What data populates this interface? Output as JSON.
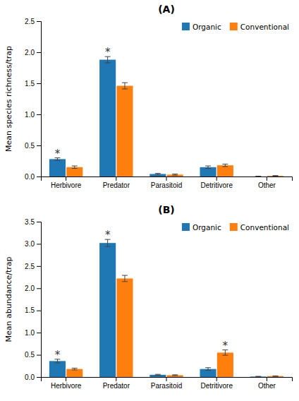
{
  "chart_data": [
    {
      "type": "bar",
      "title": "(A)",
      "y_label": "Mean species richness/trap",
      "categories": [
        "Herbivore",
        "Predator",
        "Parasitoid",
        "Detritivore",
        "Other"
      ],
      "series": [
        {
          "name": "Organic",
          "values": [
            0.28,
            1.88,
            0.04,
            0.15,
            0.0
          ],
          "errors": [
            0.02,
            0.05,
            0.01,
            0.02,
            0.005
          ]
        },
        {
          "name": "Conventional",
          "values": [
            0.15,
            1.46,
            0.03,
            0.18,
            0.01
          ],
          "errors": [
            0.02,
            0.05,
            0.01,
            0.02,
            0.005
          ]
        }
      ],
      "annotations": [
        {
          "text": "*",
          "series": "Organic",
          "category": "Herbivore"
        },
        {
          "text": "*",
          "series": "Organic",
          "category": "Predator"
        }
      ],
      "ylim": [
        0,
        2.5
      ],
      "yticks": [
        {
          "value": 0,
          "label": "0.0"
        },
        0.5,
        {
          "value": 1.0,
          "label": "1.0"
        },
        1.5,
        {
          "value": 2.0,
          "label": "2.0"
        },
        2.5
      ],
      "grid": false,
      "legend": "upper right"
    },
    {
      "type": "bar",
      "title": "(B)",
      "y_label": "Mean abundance/trap",
      "categories": [
        "Herbivore",
        "Predator",
        "Parasitoid",
        "Detritivore",
        "Other"
      ],
      "series": [
        {
          "name": "Organic",
          "values": [
            0.36,
            3.02,
            0.05,
            0.18,
            0.01
          ],
          "errors": [
            0.04,
            0.08,
            0.01,
            0.03,
            0.005
          ]
        },
        {
          "name": "Conventional",
          "values": [
            0.18,
            2.22,
            0.04,
            0.55,
            0.02
          ],
          "errors": [
            0.02,
            0.07,
            0.01,
            0.06,
            0.005
          ]
        }
      ],
      "annotations": [
        {
          "text": "*",
          "series": "Organic",
          "category": "Herbivore"
        },
        {
          "text": "*",
          "series": "Organic",
          "category": "Predator"
        },
        {
          "text": "*",
          "series": "Conventional",
          "category": "Detritivore"
        }
      ],
      "ylim": [
        0,
        3.5
      ],
      "yticks": [
        {
          "value": 0,
          "label": "0.0"
        },
        0.5,
        {
          "value": 1.0,
          "label": "1.0"
        },
        1.5,
        {
          "value": 2.0,
          "label": "2.0"
        },
        2.5,
        {
          "value": 3.0,
          "label": "3.0"
        },
        3.5
      ],
      "grid": false,
      "legend": "upper right"
    }
  ]
}
